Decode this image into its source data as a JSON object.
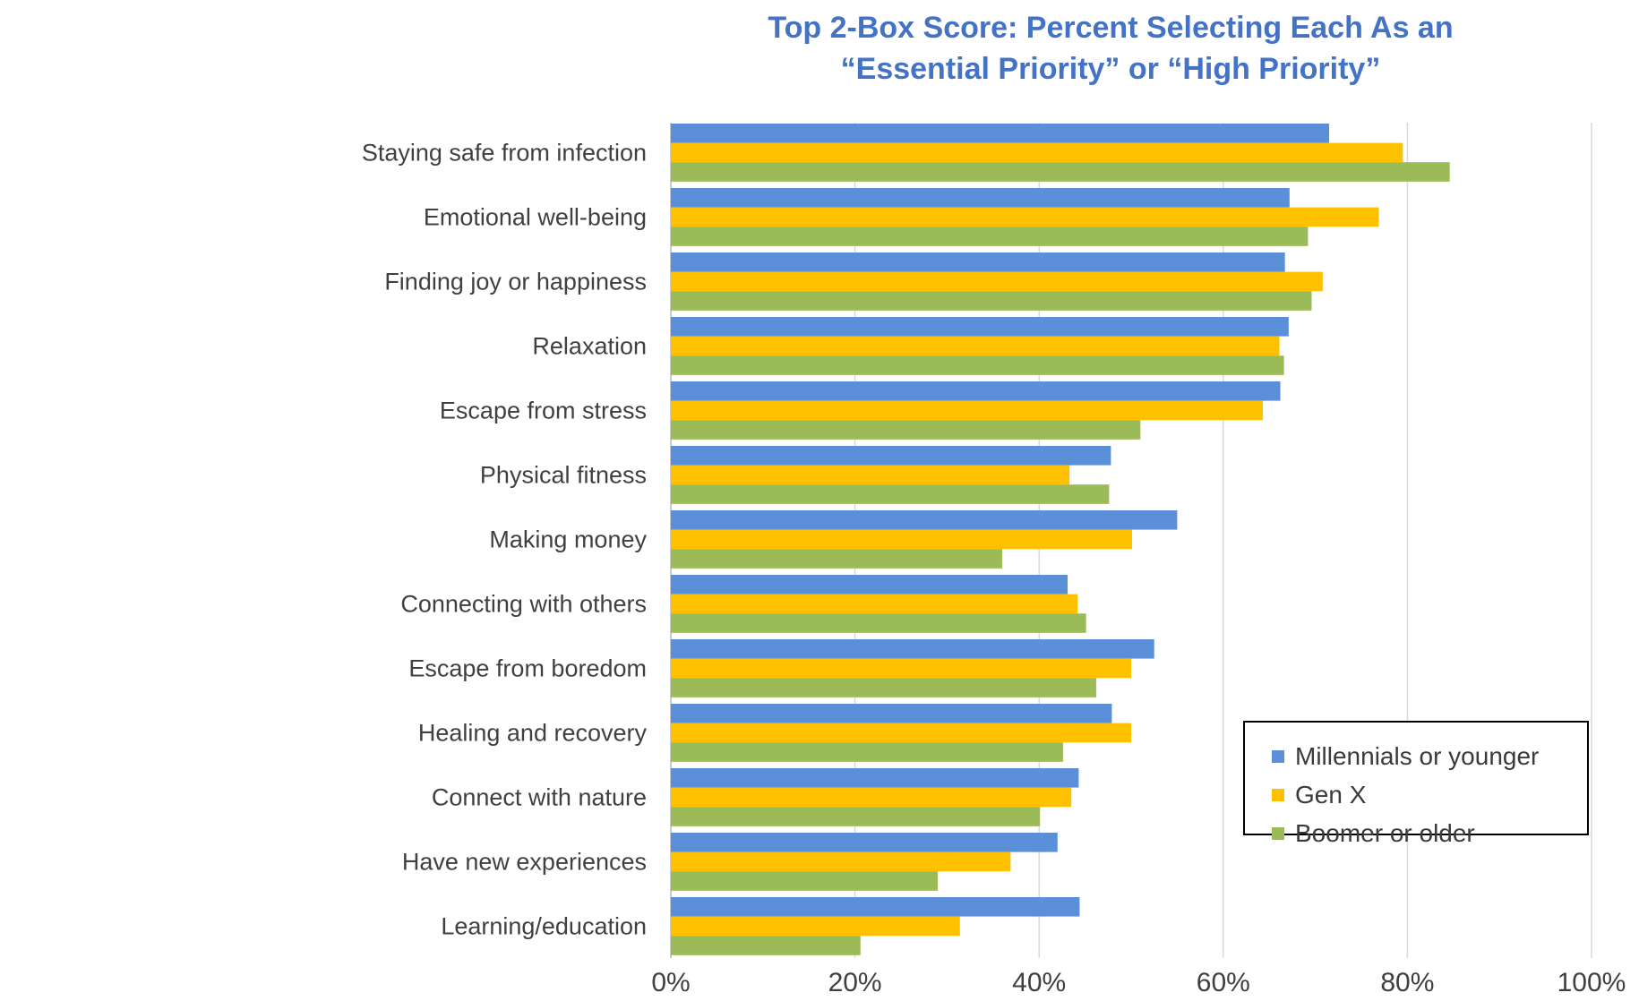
{
  "title_line1": "Top 2-Box Score: Percent Selecting Each As an",
  "title_line2": "“Essential Priority” or “High Priority”",
  "chart_data": {
    "type": "bar",
    "orientation": "horizontal",
    "title": "Top 2-Box Score: Percent Selecting Each As an “Essential Priority” or “High Priority”",
    "categories": [
      "Staying safe from infection",
      "Emotional well-being",
      "Finding joy or happiness",
      "Relaxation",
      "Escape from stress",
      "Physical fitness",
      "Making money",
      "Connecting with others",
      "Escape from boredom",
      "Healing and recovery",
      "Connect with nature",
      "Have new experiences",
      "Learning/education"
    ],
    "series": [
      {
        "name": "Millennials or younger",
        "color": "#5B8FD8",
        "values": [
          71.5,
          67.2,
          66.7,
          67.1,
          66.2,
          47.8,
          55.0,
          43.1,
          52.5,
          47.9,
          44.3,
          42.0,
          44.4
        ]
      },
      {
        "name": "Gen X",
        "color": "#FFC000",
        "values": [
          79.5,
          76.9,
          70.8,
          66.1,
          64.3,
          43.3,
          50.1,
          44.2,
          50.0,
          50.0,
          43.5,
          36.9,
          31.4
        ]
      },
      {
        "name": "Boomer or older",
        "color": "#9BBB59",
        "values": [
          84.6,
          69.2,
          69.6,
          66.6,
          51.0,
          47.6,
          36.0,
          45.1,
          46.2,
          42.6,
          40.1,
          29.0,
          20.6
        ]
      }
    ],
    "xlim": [
      0,
      100
    ],
    "xticks": [
      "0%",
      "20%",
      "40%",
      "60%",
      "80%",
      "100%"
    ],
    "xtick_values": [
      0,
      20,
      40,
      60,
      80,
      100
    ],
    "grid": true,
    "legend_position": "bottom-right"
  }
}
